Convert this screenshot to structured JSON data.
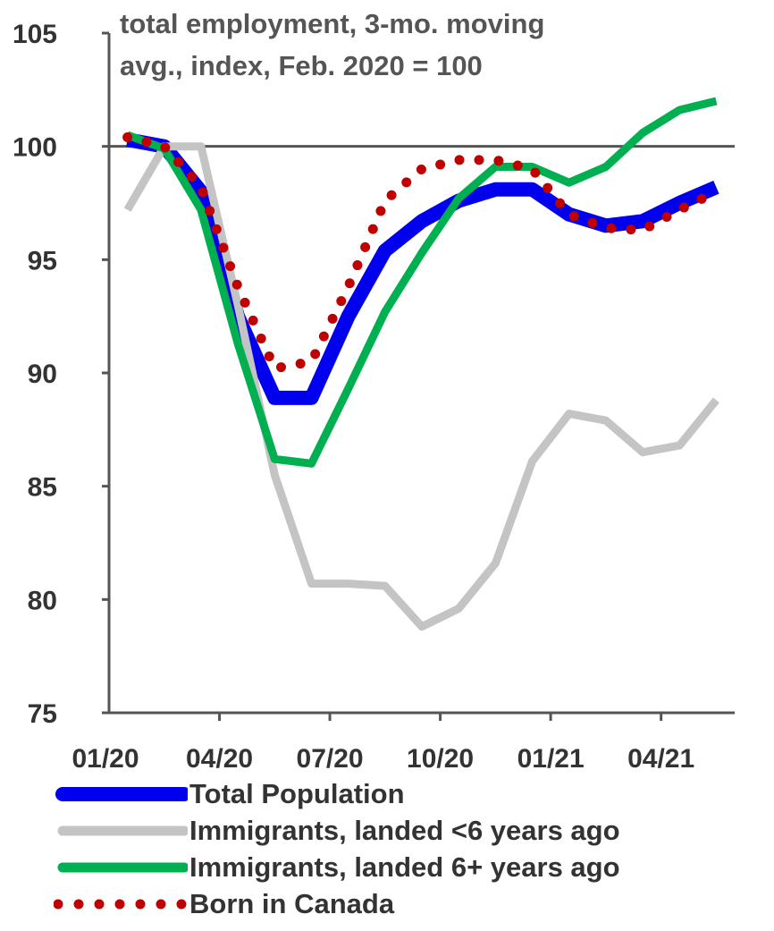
{
  "chart_data": {
    "type": "line",
    "title": "total employment, 3-mo. moving avg., index, Feb. 2020 = 100",
    "title_lines": [
      "total employment, 3-mo. moving",
      "avg., index, Feb. 2020 = 100"
    ],
    "xlabel": "",
    "ylabel": "",
    "ylim": [
      75,
      105
    ],
    "yticks": [
      75,
      80,
      85,
      90,
      95,
      100,
      105
    ],
    "x": [
      "01/20",
      "02/20",
      "03/20",
      "04/20",
      "05/20",
      "06/20",
      "07/20",
      "08/20",
      "09/20",
      "10/20",
      "11/20",
      "12/20",
      "01/21",
      "02/21",
      "03/21",
      "04/21",
      "05/21"
    ],
    "xtick_labels": [
      "01/20",
      "04/20",
      "07/20",
      "10/20",
      "01/21",
      "04/21"
    ],
    "reference_line": 100,
    "grid": false,
    "legend_position": "bottom",
    "series": [
      {
        "name": "Total Population",
        "color": "#0000ee",
        "style": "solid-thick",
        "values": [
          100.3,
          100.0,
          98.0,
          92.5,
          88.9,
          88.9,
          92.5,
          95.4,
          96.7,
          97.6,
          98.1,
          98.1,
          97.0,
          96.5,
          96.7,
          97.5,
          98.2
        ]
      },
      {
        "name": "Immigrants, landed <6 years ago",
        "color": "#c4c4c4",
        "style": "solid",
        "values": [
          97.2,
          100.0,
          100.0,
          93.0,
          85.5,
          80.7,
          80.7,
          80.6,
          78.8,
          79.6,
          81.6,
          86.1,
          88.2,
          87.9,
          86.5,
          86.8,
          88.8
        ]
      },
      {
        "name": "Immigrants, landed 6+ years ago",
        "color": "#00b050",
        "style": "solid",
        "values": [
          100.5,
          99.9,
          97.2,
          91.3,
          86.2,
          86.0,
          89.3,
          92.7,
          95.3,
          97.7,
          99.1,
          99.1,
          98.4,
          99.1,
          100.6,
          101.6,
          102.0
        ]
      },
      {
        "name": "Born in Canada",
        "color": "#c00000",
        "style": "dotted",
        "values": [
          100.4,
          100.0,
          98.2,
          93.8,
          90.2,
          90.5,
          93.8,
          97.6,
          99.0,
          99.4,
          99.4,
          99.0,
          97.0,
          96.4,
          96.3,
          97.2,
          98.0
        ]
      }
    ]
  }
}
